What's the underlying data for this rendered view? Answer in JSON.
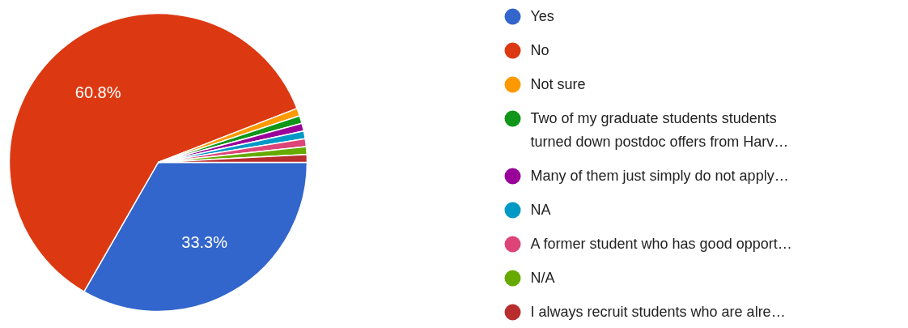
{
  "chart_data": {
    "type": "pie",
    "categories": [
      "Yes",
      "No",
      "Not sure",
      "Two of my graduate students students turned down postdoc offers from Harv…",
      "Many of them just simply do not apply…",
      "NA",
      "A former student who has good opport…",
      "N/A",
      "I always recruit students who are alre…"
    ],
    "values": [
      33.3,
      60.8,
      0.84,
      0.84,
      0.84,
      0.84,
      0.84,
      0.85,
      0.85
    ],
    "colors": [
      "#3366cc",
      "#dc3912",
      "#ff9900",
      "#109618",
      "#990099",
      "#0099c6",
      "#dd4477",
      "#66aa00",
      "#b82e2e"
    ],
    "value_labels": [
      "33.3%",
      "60.8%",
      null,
      null,
      null,
      null,
      null,
      null,
      null
    ],
    "legend": "right"
  }
}
